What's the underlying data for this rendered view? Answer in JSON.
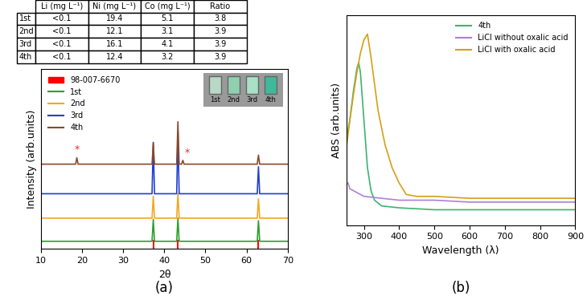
{
  "table": {
    "header": [
      "Li (mg L⁻¹)",
      "Ni (mg L⁻¹)",
      "Co (mg L⁻¹)",
      "Ratio"
    ],
    "rows": [
      [
        "1st",
        "<0.1",
        "19.4",
        "5.1",
        "3.8"
      ],
      [
        "2nd",
        "<0.1",
        "12.1",
        "3.1",
        "3.9"
      ],
      [
        "3rd",
        "<0.1",
        "16.1",
        "4.1",
        "3.9"
      ],
      [
        "4th",
        "<0.1",
        "12.4",
        "3.2",
        "3.9"
      ]
    ]
  },
  "chart_data": [
    {
      "type": "line",
      "panel_label": "(a)",
      "x_label": "2θ",
      "y_label": "Intensity (arb.units)",
      "xlim": [
        10,
        70
      ],
      "xticks": [
        10,
        20,
        30,
        40,
        50,
        60,
        70
      ],
      "ylim": [
        0,
        140
      ],
      "tick_labels": "x",
      "legend": "upper left",
      "inset_labels": [
        "1st",
        "2nd",
        "3rd",
        "4th"
      ],
      "annotations": [
        {
          "text": "*",
          "x": 18.7,
          "y": 73,
          "color": "#e03030"
        },
        {
          "text": "*",
          "x": 45.5,
          "y": 71,
          "color": "#e03030"
        }
      ],
      "series": [
        {
          "name": "98-007-6670",
          "type": "bar",
          "color": "#ff0000",
          "x": [
            37.3,
            43.3,
            62.9
          ],
          "values": [
            7,
            7,
            7
          ]
        },
        {
          "name": "1st",
          "color": "#2ca02c",
          "x": [
            10,
            37.0,
            37.3,
            37.6,
            43.0,
            43.3,
            43.6,
            62.6,
            62.9,
            63.2,
            70
          ],
          "values": [
            6,
            6,
            23,
            6,
            6,
            24,
            6,
            6,
            22,
            6,
            6
          ]
        },
        {
          "name": "2nd",
          "color": "#f5a623",
          "x": [
            10,
            37.0,
            37.3,
            37.6,
            43.0,
            43.3,
            43.6,
            62.6,
            62.9,
            63.2,
            70
          ],
          "values": [
            24,
            24,
            41,
            24,
            24,
            43,
            24,
            24,
            39,
            24,
            24
          ]
        },
        {
          "name": "3rd",
          "color": "#2040d0",
          "x": [
            10,
            37.0,
            37.3,
            37.6,
            43.0,
            43.3,
            43.6,
            62.6,
            62.9,
            63.2,
            70
          ],
          "values": [
            43,
            43,
            83,
            43,
            43,
            90,
            43,
            43,
            64,
            43,
            43
          ]
        },
        {
          "name": "4th",
          "color": "#8b4a2b",
          "x": [
            10,
            18.4,
            18.7,
            19.0,
            37.0,
            37.3,
            37.6,
            43.0,
            43.3,
            43.6,
            44.2,
            44.5,
            44.8,
            62.6,
            62.9,
            63.2,
            70
          ],
          "values": [
            66,
            66,
            71,
            66,
            66,
            82,
            66,
            66,
            99,
            66,
            66,
            69,
            66,
            66,
            73,
            66,
            66
          ]
        }
      ]
    },
    {
      "type": "line",
      "panel_label": "(b)",
      "x_label": "Wavelength (λ)",
      "y_label": "ABS (arb.units)",
      "xlim": [
        250,
        900
      ],
      "xticks": [
        300,
        400,
        500,
        600,
        700,
        800,
        900
      ],
      "ylim": [
        0,
        110
      ],
      "tick_labels": "x",
      "legend": "upper right",
      "series": [
        {
          "name": "4th",
          "color": "#3cb371",
          "x": [
            250,
            260,
            270,
            280,
            285,
            290,
            300,
            310,
            320,
            330,
            350,
            400,
            500,
            600,
            700,
            800,
            900
          ],
          "values": [
            45,
            55,
            70,
            82,
            85,
            80,
            55,
            30,
            18,
            13,
            10,
            9,
            8,
            8,
            8,
            8,
            8
          ]
        },
        {
          "name": "LiCl without oxalic acid",
          "color": "#b07fd6",
          "x": [
            250,
            255,
            260,
            280,
            300,
            350,
            400,
            500,
            600,
            700,
            800,
            900
          ],
          "values": [
            22,
            22,
            19,
            17,
            15,
            14,
            13,
            13,
            12,
            12,
            12,
            12
          ]
        },
        {
          "name": "LiCl with oxalic acid",
          "color": "#d4a017",
          "x": [
            250,
            260,
            270,
            280,
            290,
            300,
            310,
            320,
            340,
            360,
            380,
            400,
            420,
            450,
            500,
            600,
            700,
            800,
            900
          ],
          "values": [
            40,
            55,
            68,
            80,
            90,
            97,
            100,
            88,
            60,
            42,
            30,
            22,
            16,
            15,
            15,
            14,
            14,
            14,
            14
          ]
        }
      ]
    }
  ]
}
